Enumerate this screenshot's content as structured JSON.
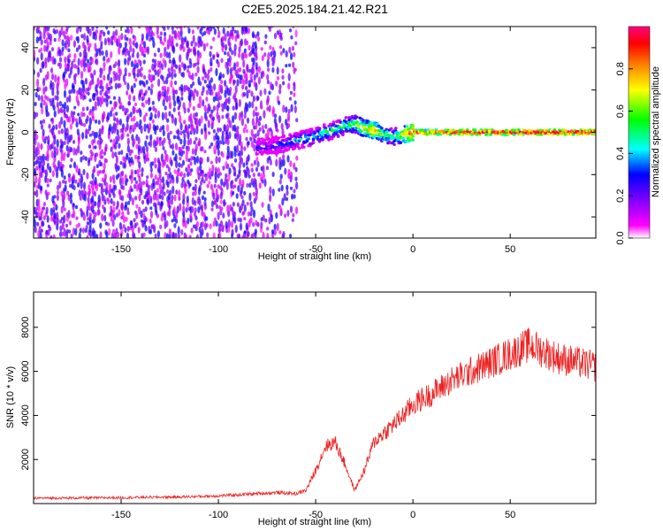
{
  "title": "C2E5.2025.184.21.42.R21",
  "chart_data": [
    {
      "type": "heatmap",
      "xlabel": "Height of straight line (km)",
      "ylabel": "Frequency (Hz)",
      "xlim": [
        -195,
        94
      ],
      "ylim": [
        -50,
        50
      ],
      "x_ticks": [
        -150,
        -100,
        -50,
        0,
        50
      ],
      "y_ticks": [
        -40,
        -20,
        0,
        20,
        40
      ],
      "grid": false,
      "colorbar": {
        "label": "Normalized spectral amplitude",
        "range": [
          0,
          1
        ],
        "ticks": [
          "0.0",
          "0.2",
          "0.4",
          "0.6",
          "0.8"
        ],
        "colormap": [
          "#ffffff",
          "#ff00ff",
          "#8000ff",
          "#0000ff",
          "#00ffff",
          "#00ff00",
          "#ffff00",
          "#ff8000",
          "#ff0000",
          "#ff0080"
        ]
      },
      "ridge": {
        "x": [
          -78,
          -70,
          -60,
          -50,
          -45,
          -40,
          -35,
          -30,
          -25,
          -20,
          -15,
          -10,
          0,
          20,
          50,
          94
        ],
        "freq": [
          -7,
          -6,
          -4,
          -2,
          0,
          1,
          3,
          4,
          2,
          1,
          -1,
          -2,
          0,
          0,
          0,
          0
        ],
        "amplitude": [
          0.3,
          0.3,
          0.4,
          0.45,
          0.5,
          0.5,
          0.55,
          0.6,
          0.7,
          0.8,
          0.6,
          0.5,
          0.9,
          0.95,
          1.0,
          1.0
        ]
      }
    },
    {
      "type": "line",
      "xlabel": "Height of straight line (km)",
      "ylabel": "SNR (10 * v/v)",
      "xlim": [
        -195,
        94
      ],
      "ylim": [
        0,
        9600
      ],
      "x_ticks": [
        -150,
        -100,
        -50,
        0,
        50
      ],
      "y_ticks": [
        2000,
        4000,
        6000,
        8000
      ],
      "grid": false,
      "color": "#ee2222",
      "series": [
        {
          "x": [
            -195,
            -180,
            -160,
            -140,
            -120,
            -100,
            -90,
            -80,
            -70,
            -60,
            -55,
            -50,
            -45,
            -40,
            -35,
            -30,
            -25,
            -20,
            -15,
            -10,
            -5,
            0,
            10,
            20,
            30,
            40,
            50,
            55,
            60,
            65,
            70,
            75,
            80,
            85,
            90,
            94
          ],
          "values": [
            250,
            250,
            260,
            280,
            300,
            350,
            400,
            450,
            500,
            450,
            600,
            1500,
            2600,
            2800,
            1800,
            600,
            1500,
            2800,
            3200,
            3600,
            4000,
            4500,
            5000,
            5600,
            6000,
            6400,
            6800,
            7000,
            7200,
            7000,
            6800,
            6600,
            6500,
            6400,
            6300,
            6200
          ]
        }
      ]
    }
  ]
}
